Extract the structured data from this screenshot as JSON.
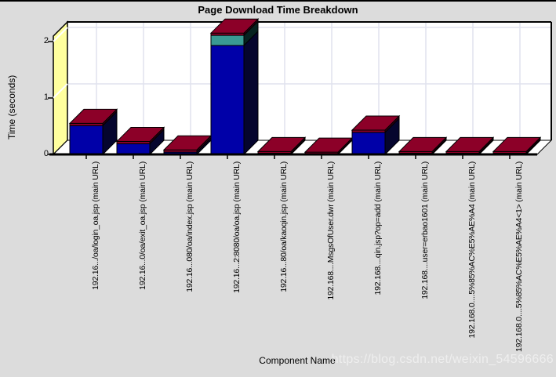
{
  "page": {
    "background_color": "#DCDCDC",
    "top_edge_color": "#000000"
  },
  "watermark": "https://blog.csdn.net/weixin_54596666",
  "chart_data": {
    "type": "bar",
    "variant": "3d-stacked-vertical",
    "title": "Page Download Time Breakdown",
    "xlabel": "Component Name",
    "ylabel": "Time (seconds)",
    "ylim": [
      0,
      2.1
    ],
    "yticks": [
      0,
      1,
      2
    ],
    "grid": true,
    "legend_position": "none",
    "categories": [
      "192.16.../oa/login_oa.jsp (main URL)",
      "192.16...0/oa/exit_oa.jsp (main URL)",
      "192.16...080/oa/index.jsp (main URL)",
      "192.16...2:8080/oa/oa.jsp (main URL)",
      "192.16...80/oa/kaoqin.jsp (main URL)",
      "192.168....MsgsOfUser.dwr (main URL)",
      "192.168....qin.jsp?op=add (main URL)",
      "192.168....user=erbao1601 (main URL)",
      "192.168.0....5%85%AC%E5%AE%A4 (main URL)",
      "192.168.0....5%85%AC%E5%AE%A4<1> (main URL)"
    ],
    "series": [
      {
        "name": "blue-segment",
        "color": "#0000A8",
        "side_color": "#05052E",
        "values": [
          0.51,
          0.19,
          0.04,
          1.93,
          0.02,
          0.01,
          0.39,
          0.02,
          0.02,
          0.02
        ]
      },
      {
        "name": "teal-segment",
        "color": "#399A93",
        "side_color": "#062220",
        "values": [
          0,
          0,
          0,
          0.18,
          0,
          0,
          0,
          0,
          0,
          0
        ]
      },
      {
        "name": "maroon-segment",
        "color": "#8C0028",
        "side_color": "#330012",
        "values": [
          0.04,
          0.04,
          0.04,
          0.04,
          0.03,
          0.03,
          0.04,
          0.03,
          0.03,
          0.03
        ]
      }
    ],
    "colors": {
      "axis_wall": "#FFFF9E",
      "plot_background": "#FFFFFF",
      "floor": "#FFFFFF",
      "gridline": "#E0E2EE",
      "outline": "#000000"
    }
  }
}
